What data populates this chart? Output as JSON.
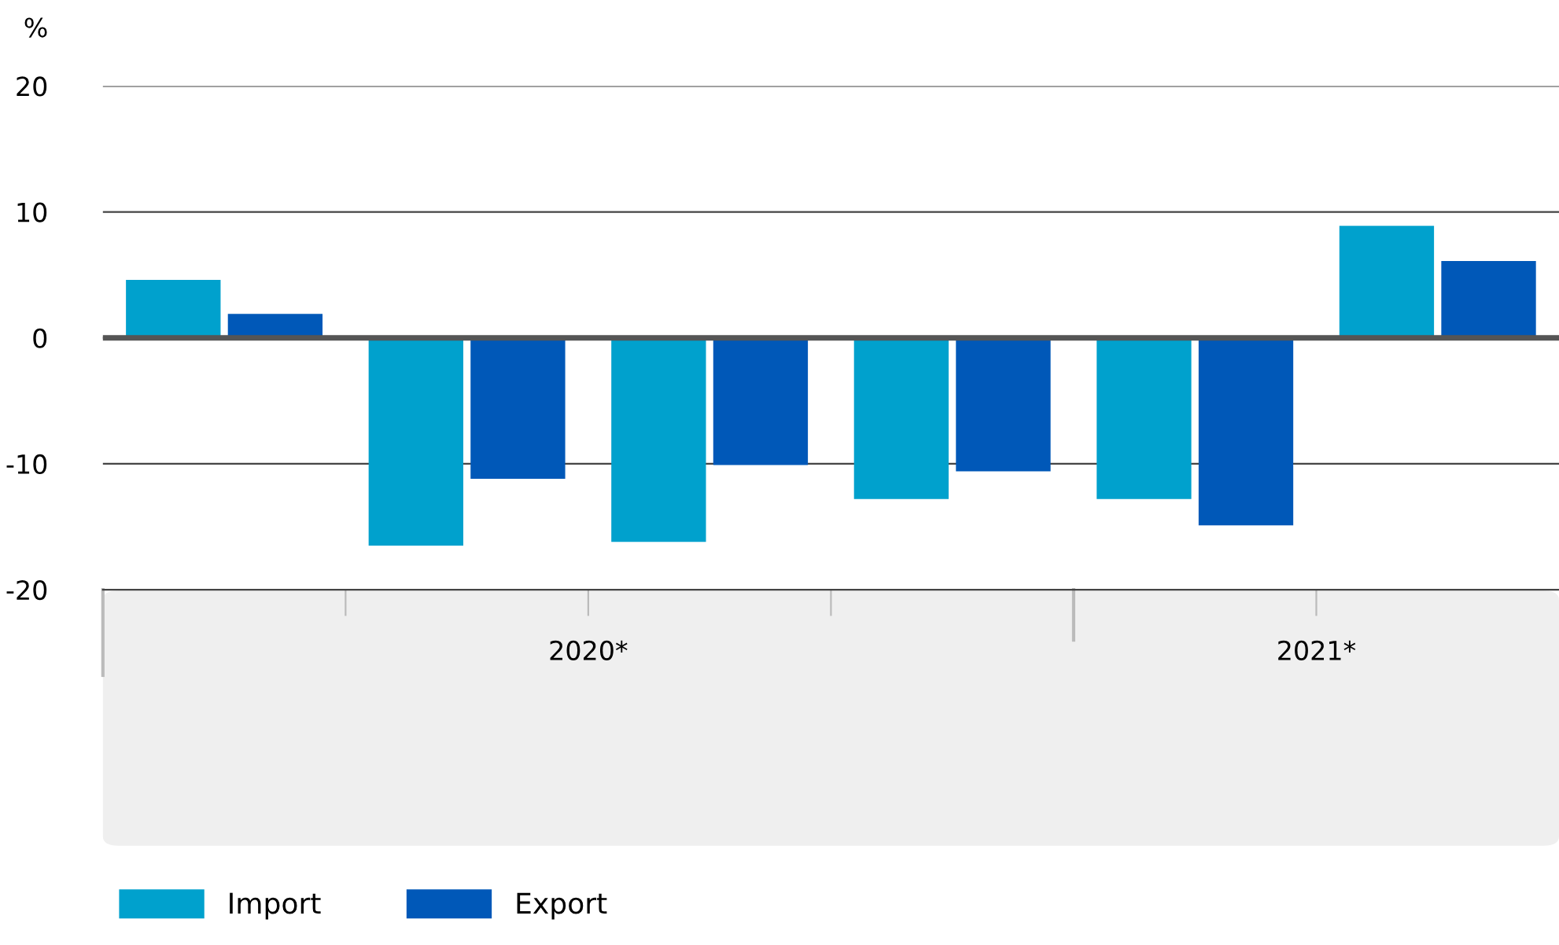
{
  "chart_data": {
    "type": "bar",
    "ylabel": "%",
    "categories": [
      null,
      null,
      null,
      null,
      null,
      null
    ],
    "series": [
      {
        "name": "Import",
        "color": "#00a1cd",
        "values": [
          4.6,
          -16.5,
          -16.2,
          -12.8,
          -12.8,
          8.9
        ]
      },
      {
        "name": "Export",
        "color": "#0058b8",
        "values": [
          1.9,
          -11.2,
          -10.1,
          -10.6,
          -14.9,
          6.1
        ]
      }
    ],
    "ylim": [
      -20,
      20
    ],
    "yticks": [
      -20,
      -10,
      0,
      10,
      20
    ],
    "grid": "y",
    "legend": "bottom left",
    "annotations": [
      "2020*",
      "2021*"
    ]
  }
}
